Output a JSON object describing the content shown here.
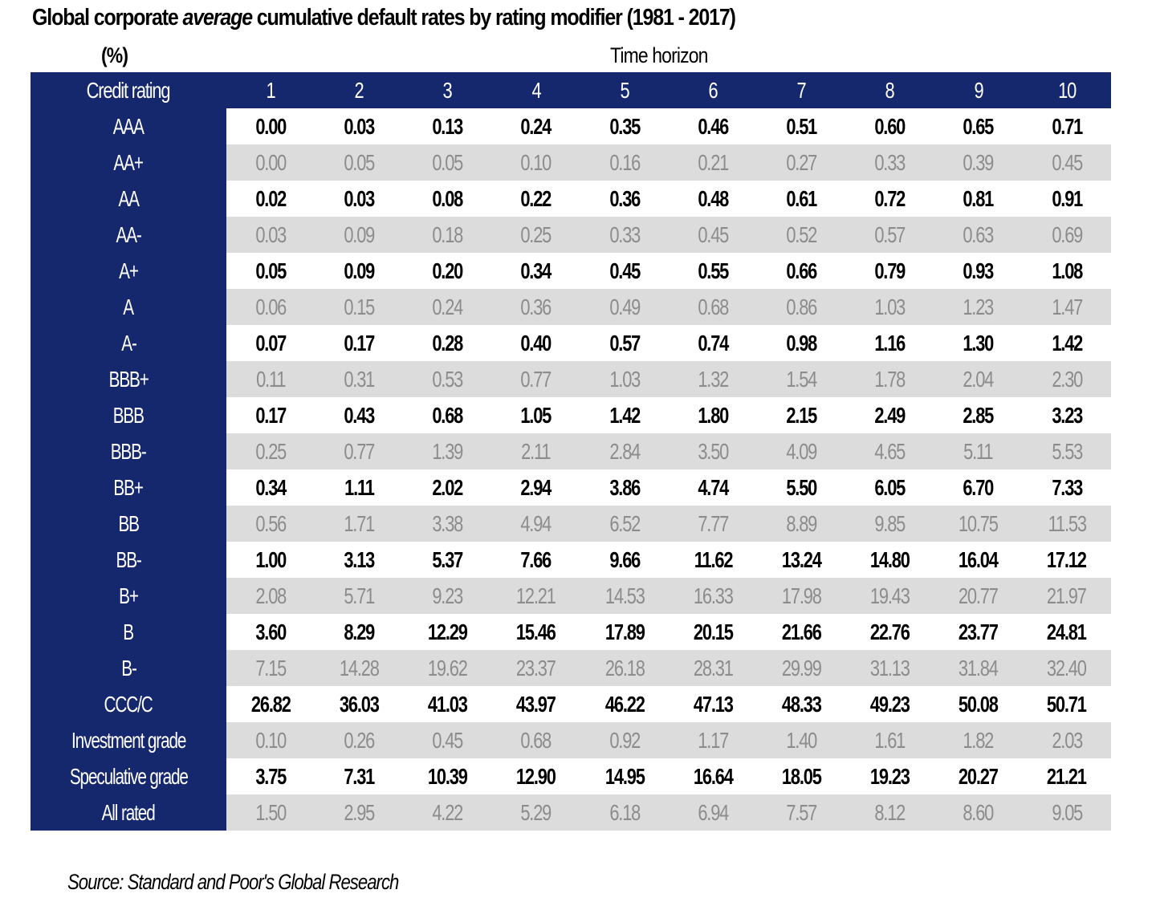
{
  "title_parts": [
    "Global corporate ",
    "average",
    " cumulative default rates by rating modifier (1981 - 2017)"
  ],
  "unit": "(%)",
  "horizon_label": "Time horizon",
  "source": "Source: Standard and Poor's Global Research",
  "colors": {
    "header": "#15276d",
    "band": "#dcdcdc",
    "band_text": "#8c8c8c"
  },
  "chart_data": {
    "type": "table",
    "title": "Global corporate average cumulative default rates by rating modifier (1981 - 2017)",
    "unit": "(%)",
    "column_group_label": "Time horizon",
    "columns": [
      "Credit rating",
      "1",
      "2",
      "3",
      "4",
      "5",
      "6",
      "7",
      "8",
      "9",
      "10"
    ],
    "rows": [
      [
        "AAA",
        "0.00",
        "0.03",
        "0.13",
        "0.24",
        "0.35",
        "0.46",
        "0.51",
        "0.60",
        "0.65",
        "0.71"
      ],
      [
        "AA+",
        "0.00",
        "0.05",
        "0.05",
        "0.10",
        "0.16",
        "0.21",
        "0.27",
        "0.33",
        "0.39",
        "0.45"
      ],
      [
        "AA",
        "0.02",
        "0.03",
        "0.08",
        "0.22",
        "0.36",
        "0.48",
        "0.61",
        "0.72",
        "0.81",
        "0.91"
      ],
      [
        "AA-",
        "0.03",
        "0.09",
        "0.18",
        "0.25",
        "0.33",
        "0.45",
        "0.52",
        "0.57",
        "0.63",
        "0.69"
      ],
      [
        "A+",
        "0.05",
        "0.09",
        "0.20",
        "0.34",
        "0.45",
        "0.55",
        "0.66",
        "0.79",
        "0.93",
        "1.08"
      ],
      [
        "A",
        "0.06",
        "0.15",
        "0.24",
        "0.36",
        "0.49",
        "0.68",
        "0.86",
        "1.03",
        "1.23",
        "1.47"
      ],
      [
        "A-",
        "0.07",
        "0.17",
        "0.28",
        "0.40",
        "0.57",
        "0.74",
        "0.98",
        "1.16",
        "1.30",
        "1.42"
      ],
      [
        "BBB+",
        "0.11",
        "0.31",
        "0.53",
        "0.77",
        "1.03",
        "1.32",
        "1.54",
        "1.78",
        "2.04",
        "2.30"
      ],
      [
        "BBB",
        "0.17",
        "0.43",
        "0.68",
        "1.05",
        "1.42",
        "1.80",
        "2.15",
        "2.49",
        "2.85",
        "3.23"
      ],
      [
        "BBB-",
        "0.25",
        "0.77",
        "1.39",
        "2.11",
        "2.84",
        "3.50",
        "4.09",
        "4.65",
        "5.11",
        "5.53"
      ],
      [
        "BB+",
        "0.34",
        "1.11",
        "2.02",
        "2.94",
        "3.86",
        "4.74",
        "5.50",
        "6.05",
        "6.70",
        "7.33"
      ],
      [
        "BB",
        "0.56",
        "1.71",
        "3.38",
        "4.94",
        "6.52",
        "7.77",
        "8.89",
        "9.85",
        "10.75",
        "11.53"
      ],
      [
        "BB-",
        "1.00",
        "3.13",
        "5.37",
        "7.66",
        "9.66",
        "11.62",
        "13.24",
        "14.80",
        "16.04",
        "17.12"
      ],
      [
        "B+",
        "2.08",
        "5.71",
        "9.23",
        "12.21",
        "14.53",
        "16.33",
        "17.98",
        "19.43",
        "20.77",
        "21.97"
      ],
      [
        "B",
        "3.60",
        "8.29",
        "12.29",
        "15.46",
        "17.89",
        "20.15",
        "21.66",
        "22.76",
        "23.77",
        "24.81"
      ],
      [
        "B-",
        "7.15",
        "14.28",
        "19.62",
        "23.37",
        "26.18",
        "28.31",
        "29.99",
        "31.13",
        "31.84",
        "32.40"
      ],
      [
        "CCC/C",
        "26.82",
        "36.03",
        "41.03",
        "43.97",
        "46.22",
        "47.13",
        "48.33",
        "49.23",
        "50.08",
        "50.71"
      ],
      [
        "Investment grade",
        "0.10",
        "0.26",
        "0.45",
        "0.68",
        "0.92",
        "1.17",
        "1.40",
        "1.61",
        "1.82",
        "2.03"
      ],
      [
        "Speculative grade",
        "3.75",
        "7.31",
        "10.39",
        "12.90",
        "14.95",
        "16.64",
        "18.05",
        "19.23",
        "20.27",
        "21.21"
      ],
      [
        "All rated",
        "1.50",
        "2.95",
        "4.22",
        "5.29",
        "6.18",
        "6.94",
        "7.57",
        "8.12",
        "8.60",
        "9.05"
      ]
    ]
  }
}
